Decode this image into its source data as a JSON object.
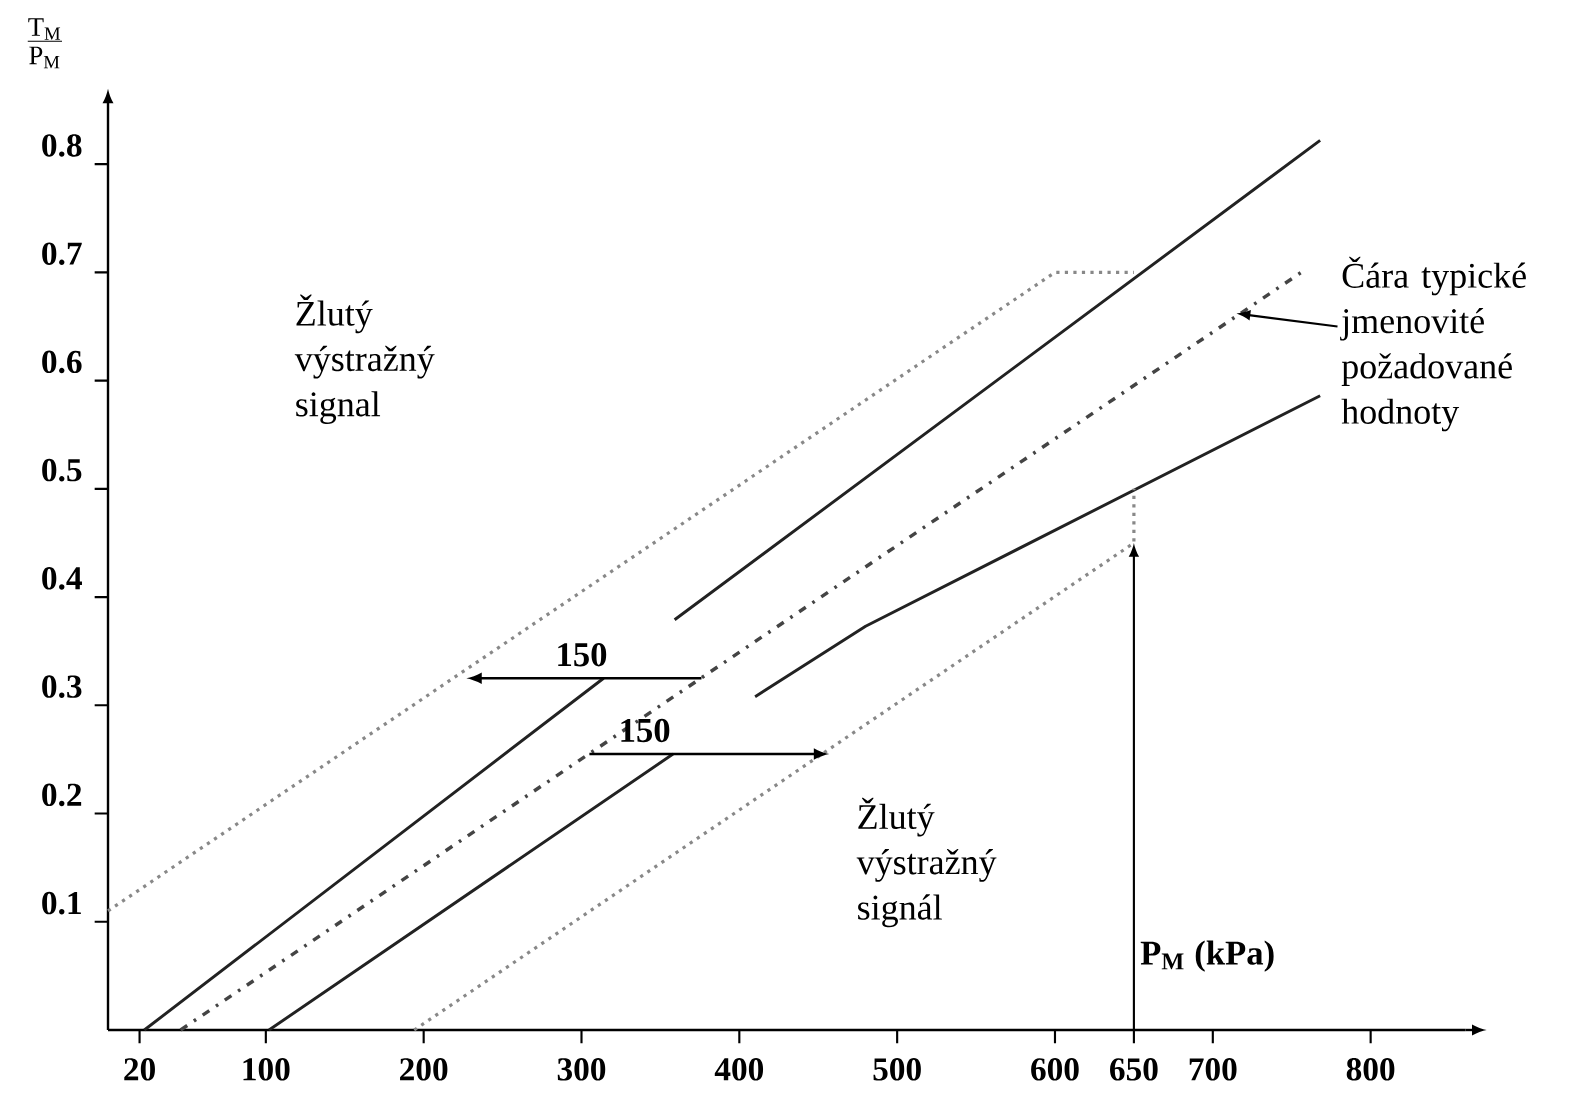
{
  "chart_data": {
    "type": "line",
    "xlabel": "P$_{M}$ (kPa)",
    "ylabel": "\\frac{\\mathrm{T_M}}{\\mathrm{P_M}}",
    "xlim": [
      0,
      860
    ],
    "ylim": [
      0,
      0.85
    ],
    "xticks": [
      20,
      100,
      200,
      300,
      400,
      500,
      600,
      650,
      700,
      800
    ],
    "yticks": [
      0.1,
      0.2,
      0.3,
      0.4,
      0.5,
      0.6,
      0.7,
      0.8
    ],
    "series": [
      {
        "color": "#888888",
        "line_style": "dotted",
        "x": [
          0,
          600,
          650
        ],
        "values": [
          0.11,
          0.7,
          0.7
        ]
      },
      {
        "color": "#222222",
        "line_style": "solid",
        "x": [
          23,
          314,
          336,
          359,
          768
        ],
        "values": [
          0,
          0.325,
          null,
          0.379,
          0.822
        ]
      },
      {
        "color": "#444444",
        "line_style": "dashdot",
        "x": [
          46,
          758
        ],
        "values": [
          0,
          0.702
        ]
      },
      {
        "color": "#222222",
        "line_style": "solid",
        "x": [
          102,
          358,
          384,
          410,
          480,
          768
        ],
        "values": [
          0,
          0.255,
          null,
          0.308,
          0.373,
          0.586
        ]
      },
      {
        "color": "#888888",
        "line_style": "dotted",
        "x": [
          194,
          650,
          650
        ],
        "values": [
          0,
          0.45,
          0.5
        ]
      }
    ],
    "annotations": [
      "Žlutý výstražný signal",
      {
        "text": "150",
        "x": 227,
        "y": 0.325
      },
      {
        "text": "150",
        "x": 457,
        "y": 0.255
      },
      "Žlutý výstražný signál",
      {
        "text": "Čára typické jmenovité požadované hodnoty",
        "x": 715,
        "y": 0.662
      }
    ]
  }
}
